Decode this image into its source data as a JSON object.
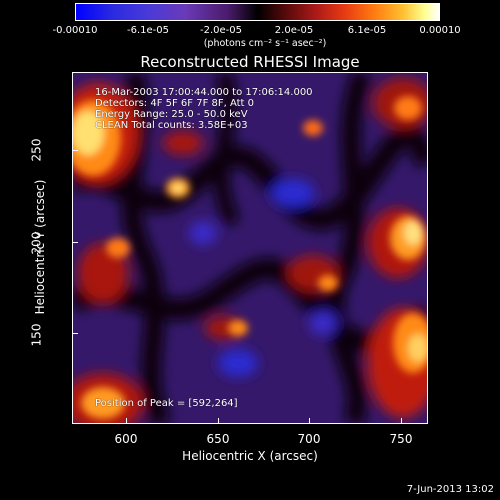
{
  "colorbar": {
    "ticks": [
      "-0.00010",
      "-6.1e-05",
      "-2.0e-05",
      "2.0e-05",
      "6.1e-05",
      "0.00010"
    ],
    "unit_label": "(photons cm⁻² s⁻¹ asec⁻²)"
  },
  "plot": {
    "title": "Reconstructed RHESSI Image",
    "time_range": "16-Mar-2003 17:00:44.000 to 17:06:14.000",
    "detectors": "Detectors: 4F 5F 6F 7F 8F, Att 0",
    "energy_range": "Energy Range: 25.0 - 50.0 keV",
    "counts": "CLEAN   Total counts: 3.58E+03",
    "peak": "Position of Peak = [592,264]"
  },
  "axes": {
    "x_label": "Heliocentric X (arcsec)",
    "y_label": "Heliocentric Y (arcsec)",
    "x_ticks": [
      "600",
      "650",
      "700",
      "750"
    ],
    "y_ticks": [
      "150",
      "200",
      "250"
    ]
  },
  "footer": {
    "timestamp": "7-Jun-2013 13:02"
  },
  "colors": {
    "background": "#000000",
    "negative": "#4a2a9a",
    "positive_low": "#b01010",
    "positive_mid": "#ff7a10",
    "positive_high": "#ffffa0"
  }
}
